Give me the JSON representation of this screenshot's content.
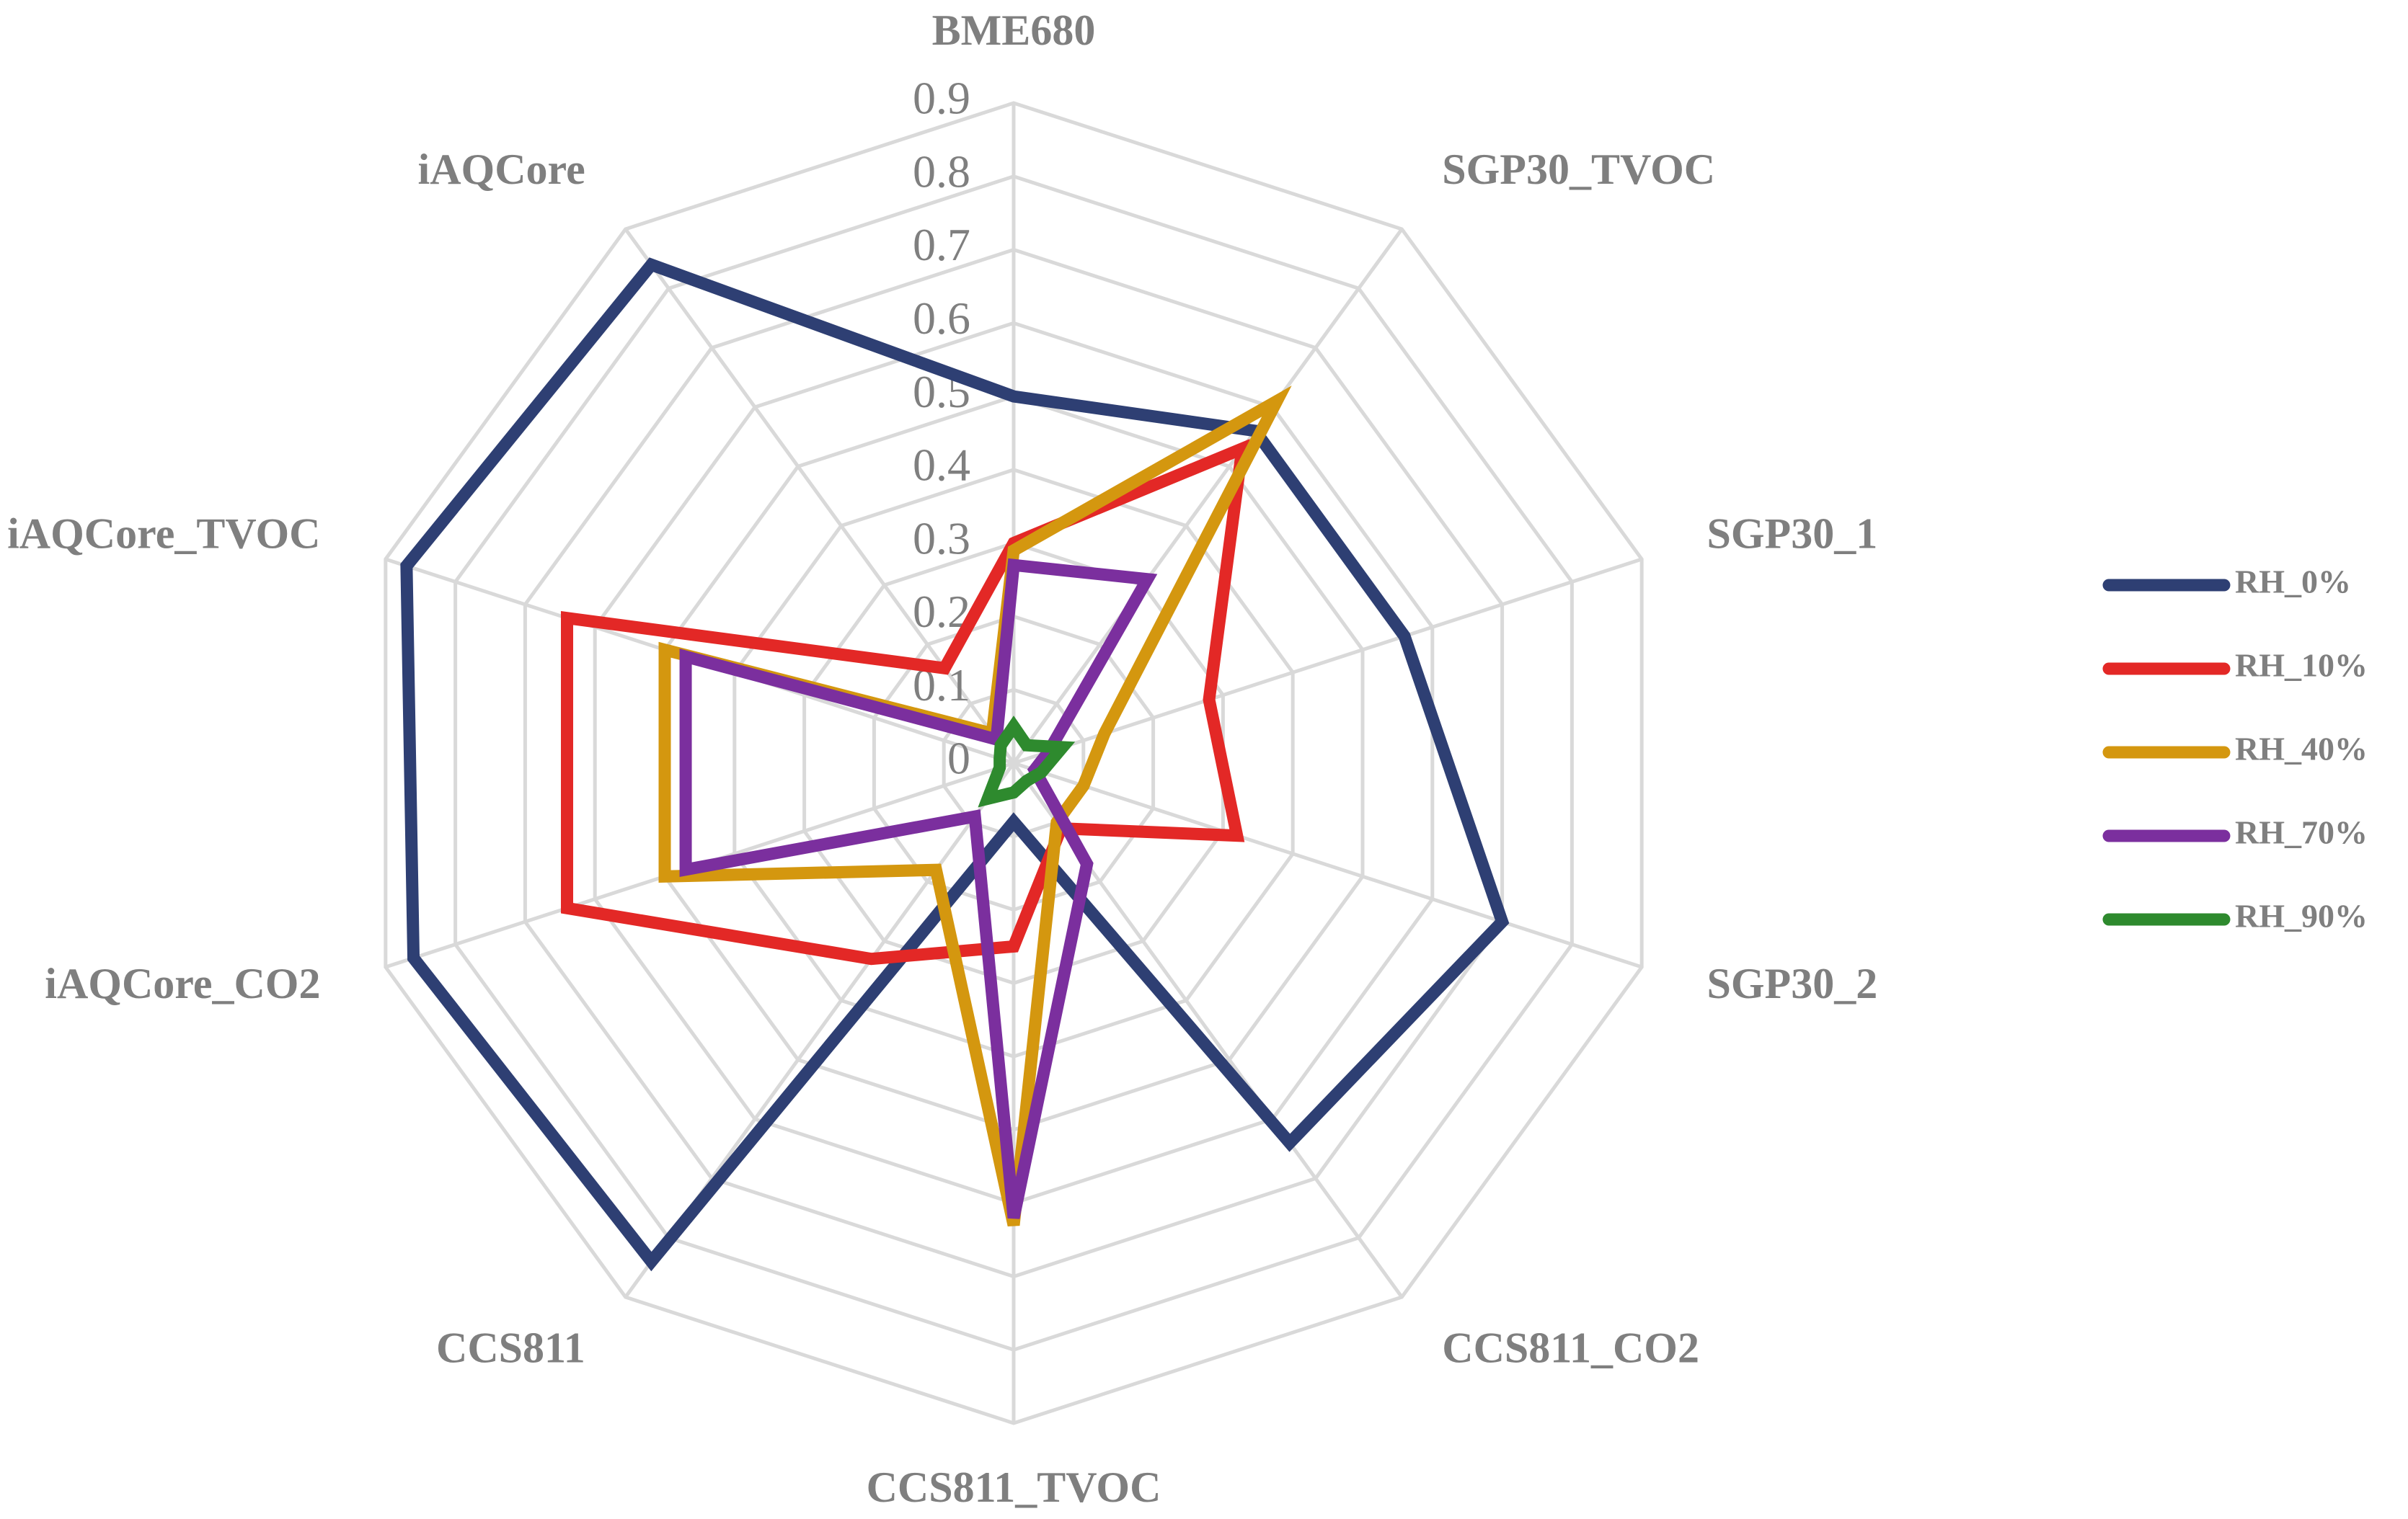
{
  "chart_data": {
    "type": "radar",
    "categories": [
      "BME680",
      "SGP30_TVOC",
      "SGP30_1",
      "SGP30_2",
      "CCS811_CO2",
      "CCS811_TVOC",
      "CCS811",
      "iAQCore_CO2",
      "iAQCore_TVOC",
      "iAQCore"
    ],
    "series": [
      {
        "name": "RH_0%",
        "color": "#2e3f73",
        "values": [
          0.5,
          0.56,
          0.56,
          0.7,
          0.64,
          0.08,
          0.84,
          0.86,
          0.87,
          0.84
        ]
      },
      {
        "name": "RH_10%",
        "color": "#e32826",
        "values": [
          0.3,
          0.53,
          0.28,
          0.32,
          0.11,
          0.25,
          0.33,
          0.64,
          0.64,
          0.16
        ]
      },
      {
        "name": "RH_40%",
        "color": "#d4970f",
        "values": [
          0.29,
          0.61,
          0.13,
          0.1,
          0.1,
          0.63,
          0.18,
          0.5,
          0.5,
          0.05
        ]
      },
      {
        "name": "RH_70%",
        "color": "#7b2f9e",
        "values": [
          0.27,
          0.31,
          0.05,
          0.03,
          0.17,
          0.62,
          0.09,
          0.47,
          0.47,
          0.04
        ]
      },
      {
        "name": "RH_90%",
        "color": "#2e8a2e",
        "values": [
          0.05,
          0.03,
          0.07,
          0.04,
          0.03,
          0.04,
          0.06,
          0.02,
          0.02,
          0.03
        ]
      }
    ],
    "ylim": [
      0,
      0.9
    ],
    "yticks": [
      0,
      0.1,
      0.2,
      0.3,
      0.4,
      0.5,
      0.6,
      0.7,
      0.8,
      0.9
    ],
    "grid": true,
    "legend": "right"
  }
}
